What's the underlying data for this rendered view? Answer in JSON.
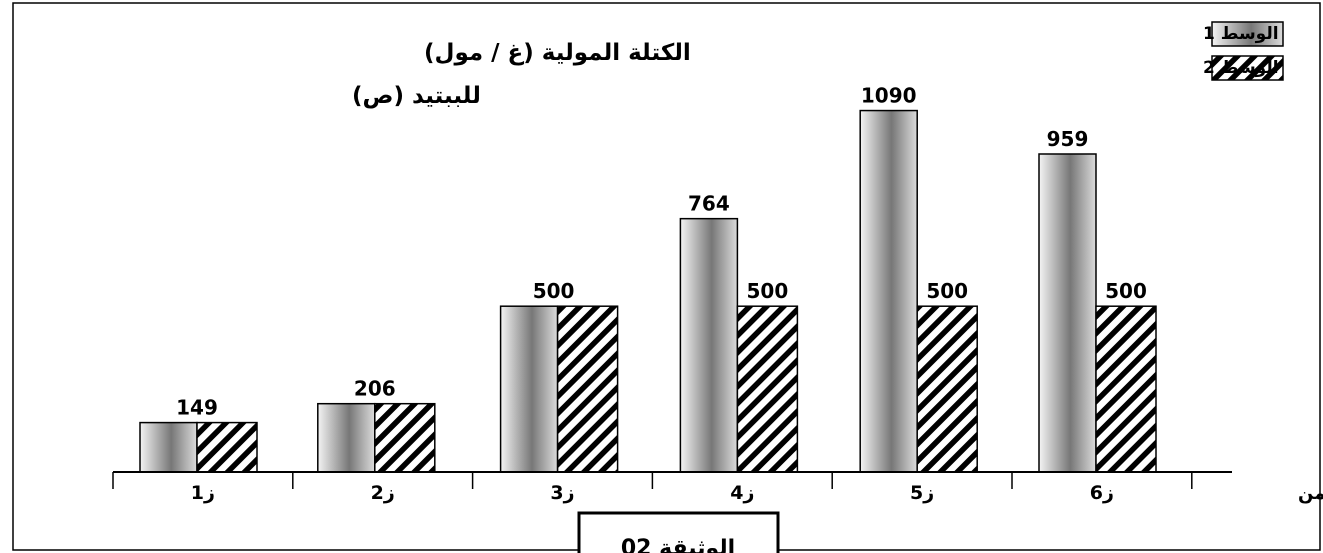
{
  "document_label": "الوثيقة 02",
  "chart_data": {
    "type": "bar",
    "title_lines": [
      "الكتلة المولية (غ / مول)",
      "للببتيد (ص)"
    ],
    "xlabel": "الزمن",
    "categories": [
      "ز1",
      "ز2",
      "ز3",
      "ز4",
      "ز5",
      "ز6"
    ],
    "series": [
      {
        "name": "الوسط 1",
        "values": [
          149,
          206,
          500,
          764,
          1090,
          959
        ],
        "fill": "gradient-gray"
      },
      {
        "name": "الوسط 2",
        "values": [
          149,
          206,
          500,
          500,
          500,
          500
        ],
        "fill": "diagonal-hatch"
      }
    ],
    "data_labels": [
      "149",
      "206",
      "500",
      "764",
      "500",
      "1090",
      "500",
      "959",
      "500"
    ],
    "legend_position": "top-right",
    "grid": false,
    "ylim": [
      0,
      1200
    ],
    "colors": {
      "axis": "#000000",
      "hatch": "#000000",
      "bar_light": "#f2f2f2",
      "bar_dark": "#7d7d7d"
    }
  }
}
